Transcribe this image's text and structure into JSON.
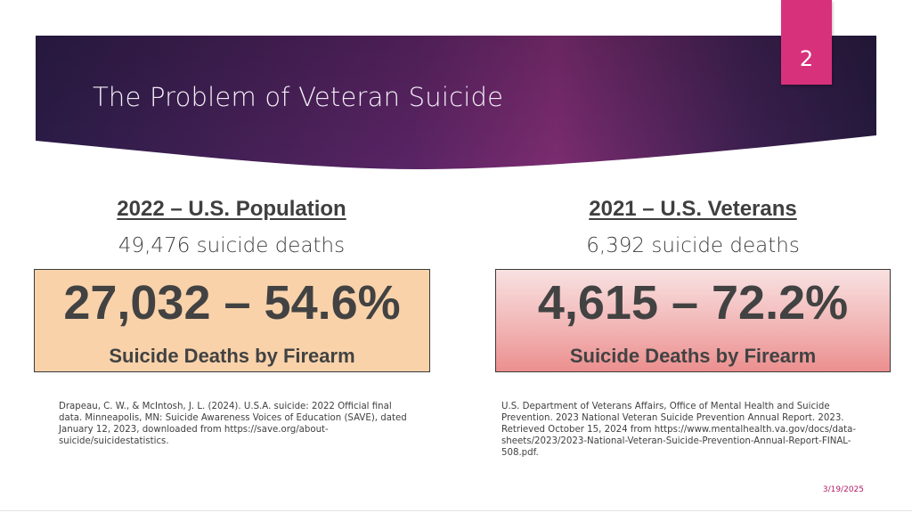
{
  "slide": {
    "title": "The Problem of Veteran Suicide",
    "page_number": "2",
    "date": "3/19/2025",
    "colors": {
      "banner_dark": "#2a1b45",
      "banner_magenta": "#7a2a6e",
      "accent_pink": "#d8317c",
      "left_box_fill": "#f9d2aa",
      "right_box_fill_top": "#f8e1e1",
      "right_box_fill_bottom": "#ec8f8f",
      "date_color": "#b01d65"
    }
  },
  "left_column": {
    "heading": "2022 – U.S. Population",
    "subheading": "49,476 suicide deaths",
    "stat": "27,032 – 54.6%",
    "stat_label": "Suicide Deaths by Firearm",
    "citation": "Drapeau, C. W., & McIntosh, J. L. (2024). U.S.A. suicide: 2022 Official final data. Minneapolis, MN: Suicide Awareness Voices of Education (SAVE), dated January 12, 2023, downloaded from https://save.org/about-suicide/suicidestatistics."
  },
  "right_column": {
    "heading": "2021 – U.S. Veterans",
    "subheading": "6,392 suicide deaths",
    "stat": "4,615 – 72.2%",
    "stat_label": "Suicide Deaths by Firearm",
    "citation": "U.S. Department of Veterans Affairs, Office of Mental Health and Suicide Prevention. 2023 National Veteran Suicide Prevention Annual Report. 2023. Retrieved October 15, 2024 from https://www.mentalhealth.va.gov/docs/data-sheets/2023/2023-National-Veteran-Suicide-Prevention-Annual-Report-FINAL-508.pdf."
  }
}
